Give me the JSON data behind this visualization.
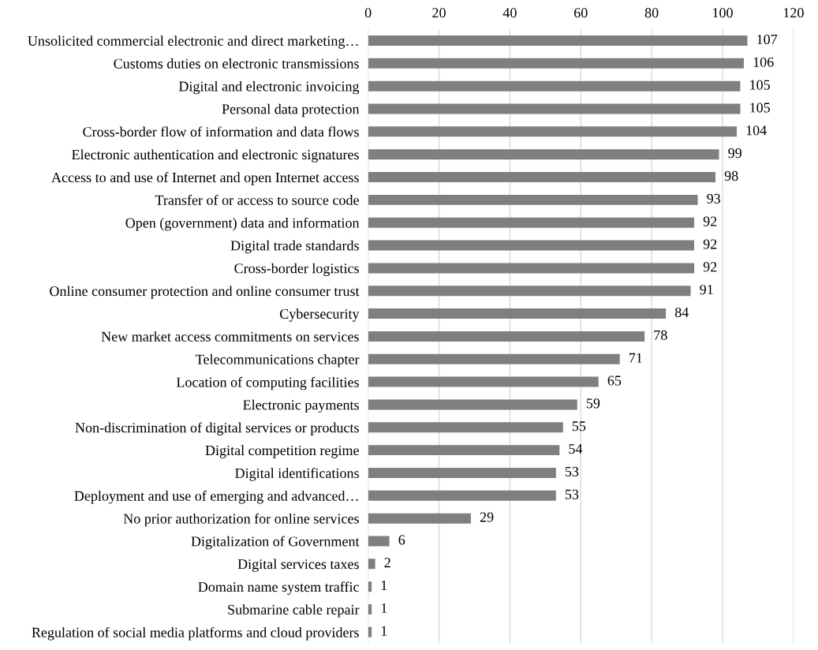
{
  "chart_data": {
    "type": "bar",
    "orientation": "horizontal",
    "categories": [
      "Unsolicited commercial electronic and direct marketing…",
      "Customs duties on electronic transmissions",
      "Digital and electronic invoicing",
      "Personal data protection",
      "Cross-border flow of information and data flows",
      "Electronic authentication and electronic signatures",
      "Access to and use of Internet and open Internet access",
      "Transfer of or access to source code",
      "Open (government) data and information",
      "Digital trade standards",
      "Cross-border logistics",
      "Online consumer protection and online consumer trust",
      "Cybersecurity",
      "New market access commitments on services",
      "Telecommunications chapter",
      "Location of computing facilities",
      "Electronic payments",
      "Non-discrimination of digital services or products",
      "Digital competition regime",
      "Digital identifications",
      "Deployment and use of emerging and advanced…",
      "No prior authorization for online services",
      "Digitalization of Government",
      "Digital services taxes",
      "Domain name system traffic",
      "Submarine cable repair",
      "Regulation of social media platforms and cloud providers"
    ],
    "values": [
      107,
      106,
      105,
      105,
      104,
      99,
      98,
      93,
      92,
      92,
      92,
      91,
      84,
      78,
      71,
      65,
      59,
      55,
      54,
      53,
      53,
      29,
      6,
      2,
      1,
      1,
      1
    ],
    "color": "#7f7f7f",
    "xlim": [
      0,
      120
    ],
    "xticks": [
      0,
      20,
      40,
      60,
      80,
      100,
      120
    ],
    "grid": "x",
    "data_labels": true,
    "legend": false
  }
}
